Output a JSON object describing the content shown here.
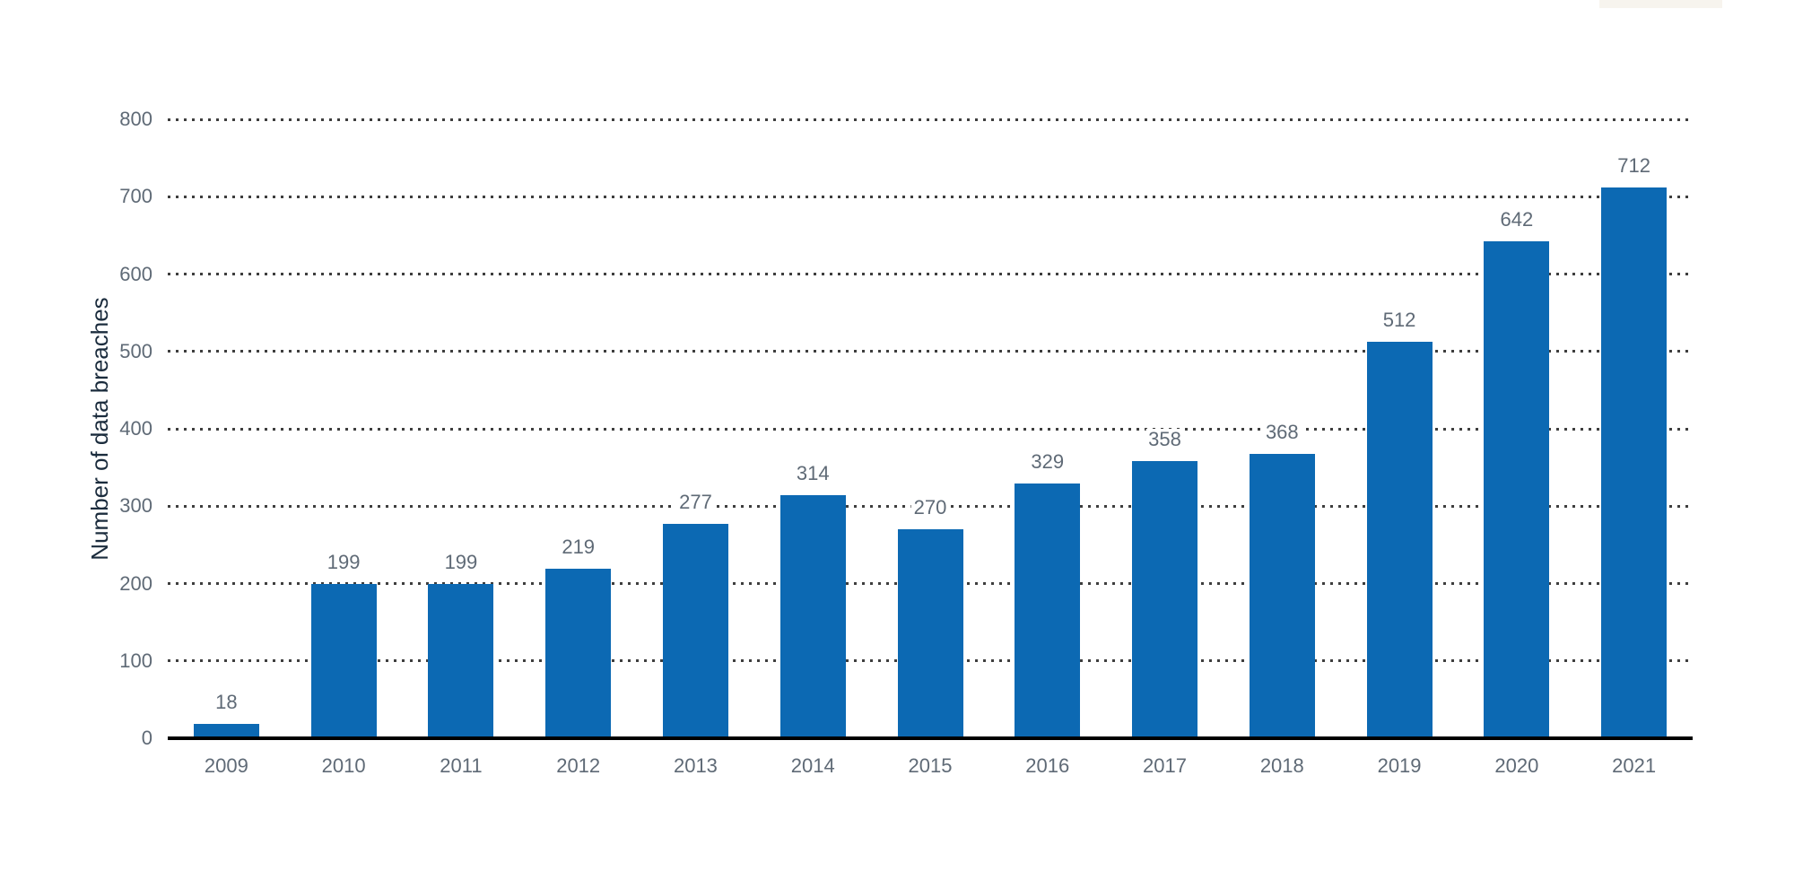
{
  "chart_data": {
    "type": "bar",
    "title": "",
    "xlabel": "",
    "ylabel": "Number of data breaches",
    "categories": [
      "2009",
      "2010",
      "2011",
      "2012",
      "2013",
      "2014",
      "2015",
      "2016",
      "2017",
      "2018",
      "2019",
      "2020",
      "2021"
    ],
    "values": [
      18,
      199,
      199,
      219,
      277,
      314,
      270,
      329,
      358,
      368,
      512,
      642,
      712
    ],
    "value_labels": [
      "18",
      "199",
      "199",
      "219",
      "277",
      "314",
      "270",
      "329",
      "358",
      "368",
      "512",
      "642",
      "712"
    ],
    "ylim": [
      0,
      800
    ],
    "yticks": [
      0,
      100,
      200,
      300,
      400,
      500,
      600,
      700,
      800
    ],
    "grid": "horizontal-dotted",
    "legend_position": "none"
  },
  "colors": {
    "bar": "#0c69b3",
    "tick_label": "#5f6a76",
    "value_label": "#5f6a76",
    "axis_title": "#1b2c3d",
    "gridline": "#3e3e3e",
    "axis_line": "#000000",
    "background": "#ffffff",
    "watermark_artifact": "#f7f4ee"
  }
}
